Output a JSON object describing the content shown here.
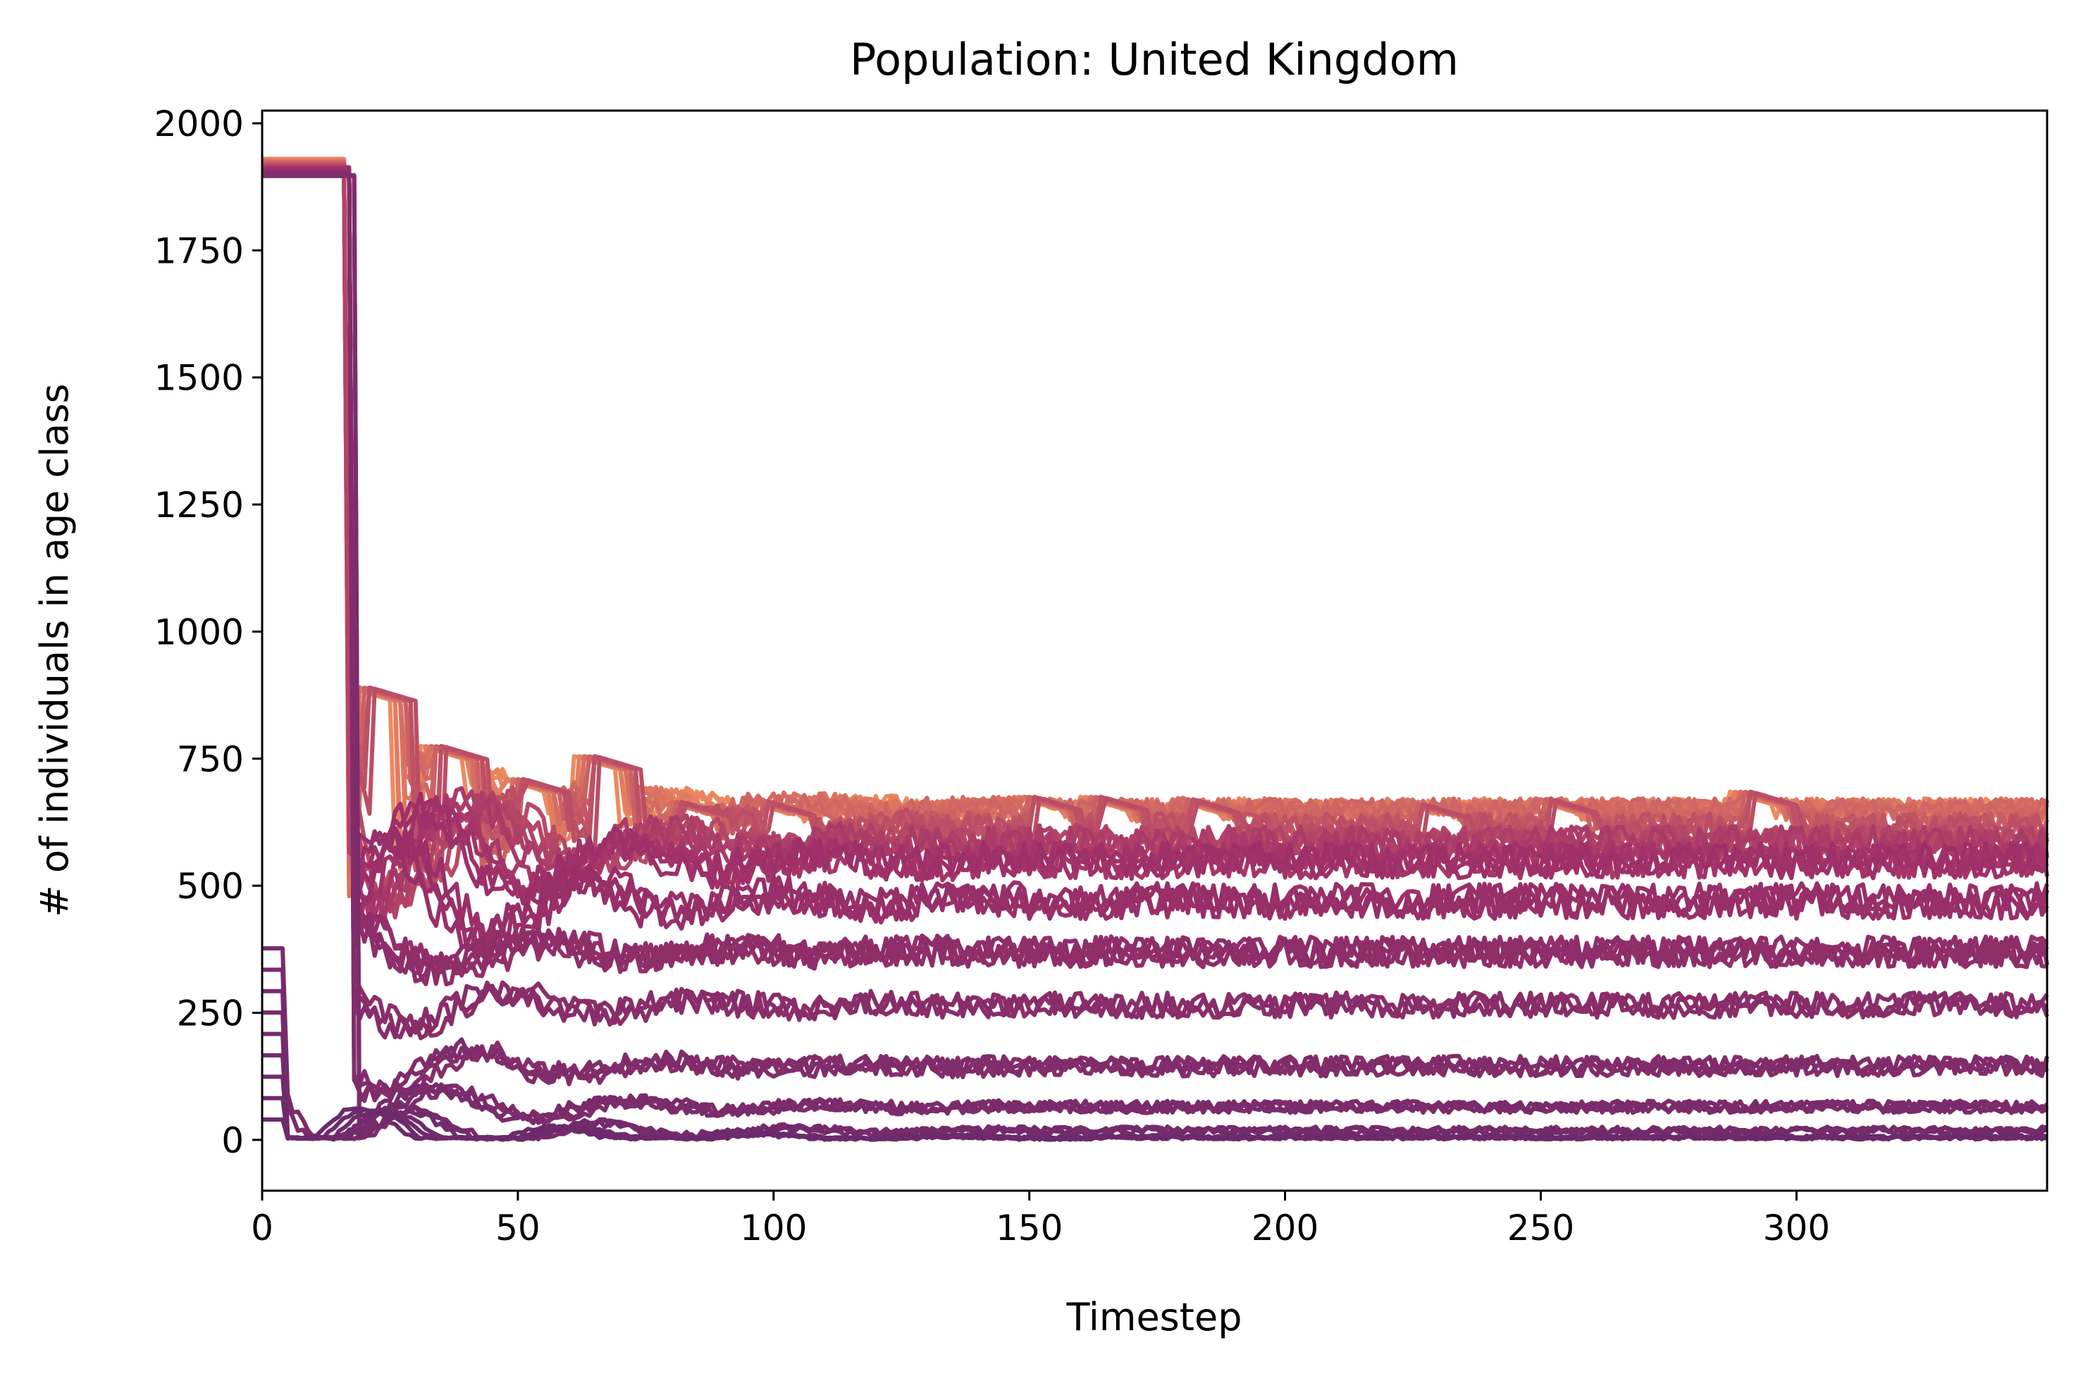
{
  "chart_data": {
    "type": "line",
    "title": "Population: United Kingdom",
    "xlabel": "Timestep",
    "ylabel": "# of individuals in age class",
    "xlim": [
      0,
      349
    ],
    "ylim": [
      -100,
      2025
    ],
    "xticks": [
      0,
      50,
      100,
      150,
      200,
      250,
      300
    ],
    "yticks": [
      0,
      250,
      500,
      750,
      1000,
      1250,
      1500,
      1750,
      2000
    ],
    "grid": false,
    "legend": "none",
    "colormap": "flare",
    "color_range": [
      "#ee8a5f",
      "#6c2a6c"
    ],
    "series_count": 58,
    "series_note": "one line per age class, colors graded from young (light orange) to old (dark purple)",
    "bands": [
      {
        "level": 650,
        "amp": 22
      },
      {
        "level": 615,
        "amp": 28
      },
      {
        "level": 585,
        "amp": 32
      },
      {
        "level": 550,
        "amp": 35
      },
      {
        "level": 470,
        "amp": 35
      },
      {
        "level": 370,
        "amp": 30
      },
      {
        "level": 265,
        "amp": 25
      },
      {
        "level": 145,
        "amp": 20
      },
      {
        "level": 65,
        "amp": 12
      },
      {
        "level": 18,
        "amp": 8
      },
      {
        "level": 5,
        "amp": 4
      }
    ],
    "initial_plateau": {
      "x_end": 16,
      "value": 1930
    },
    "cohort_peaks": [
      {
        "x": 17,
        "value": 890
      },
      {
        "x": 31,
        "value": 775
      },
      {
        "x": 47,
        "value": 710
      },
      {
        "x": 61,
        "value": 755
      },
      {
        "x": 78,
        "value": 665
      },
      {
        "x": 95,
        "value": 665
      },
      {
        "x": 147,
        "value": 675
      },
      {
        "x": 160,
        "value": 675
      },
      {
        "x": 178,
        "value": 670
      },
      {
        "x": 223,
        "value": 660
      },
      {
        "x": 248,
        "value": 670
      },
      {
        "x": 287,
        "value": 685
      }
    ]
  }
}
